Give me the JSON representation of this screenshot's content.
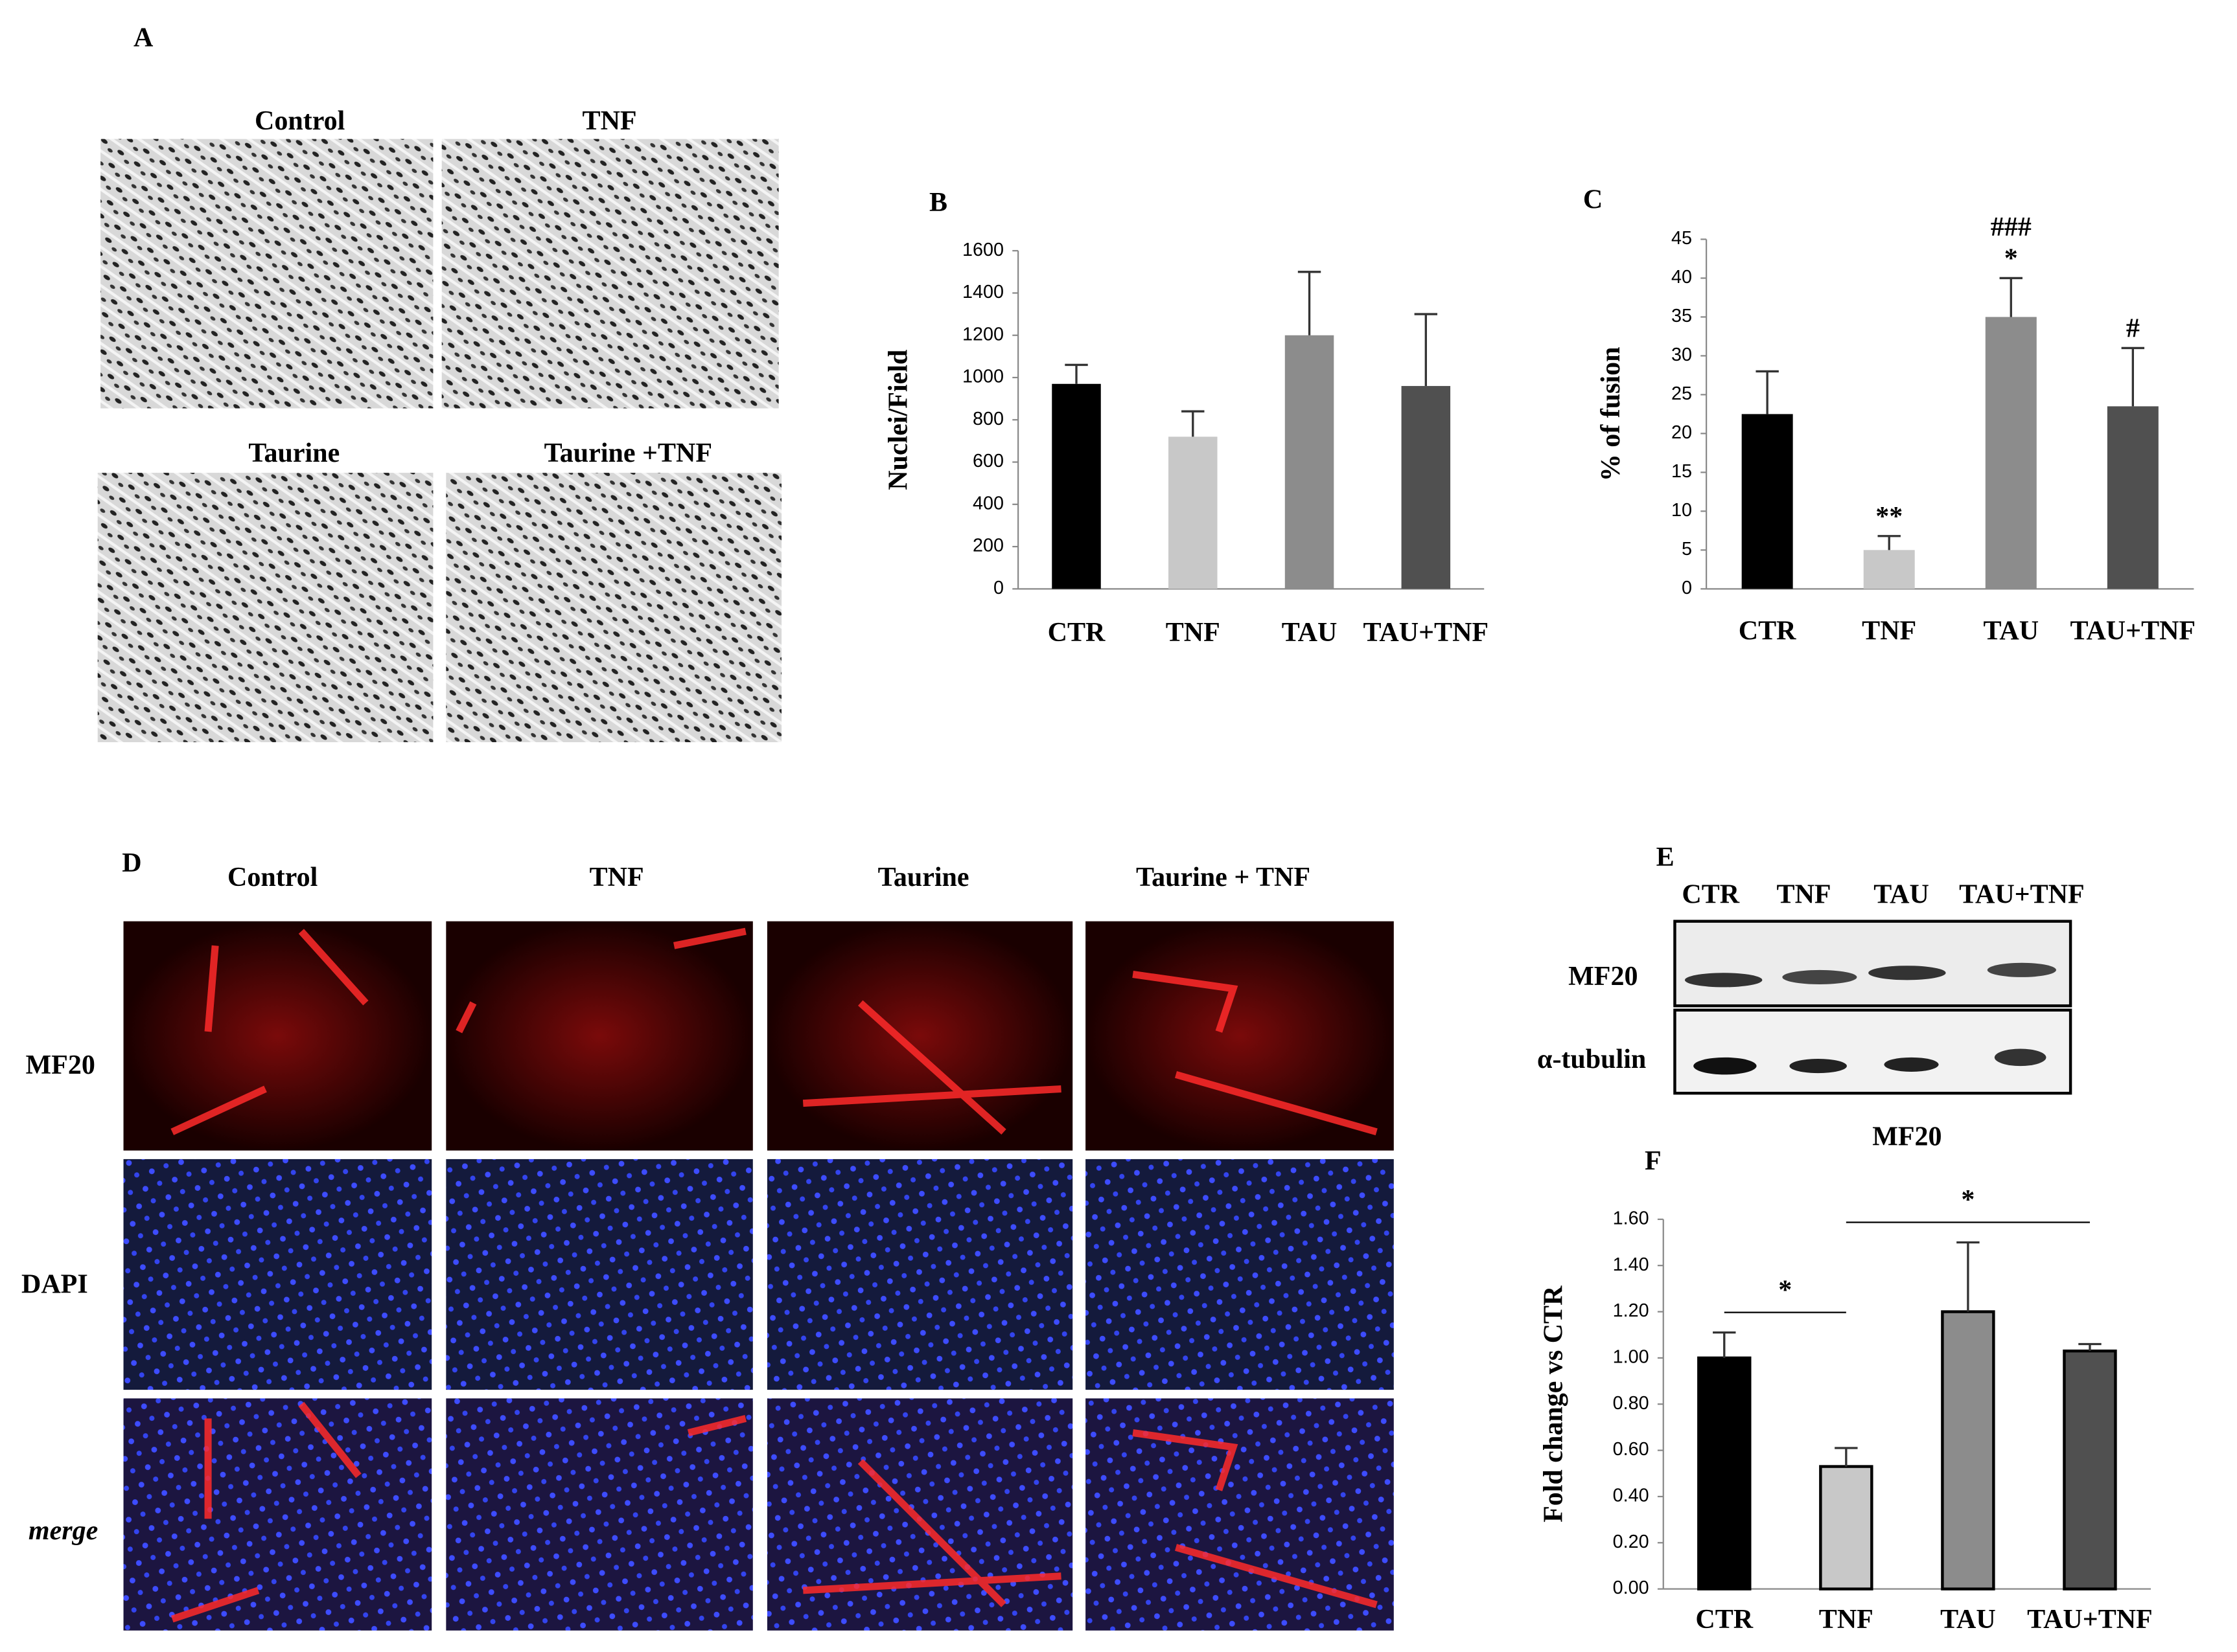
{
  "panel_a": {
    "label": "A",
    "images": [
      "Control",
      "TNF",
      "Taurine",
      "Taurine +TNF"
    ]
  },
  "panel_d": {
    "label": "D",
    "columns": [
      "Control",
      "TNF",
      "Taurine",
      "Taurine + TNF"
    ],
    "rows": [
      "MF20",
      "DAPI",
      "merge"
    ]
  },
  "panel_e": {
    "label": "E",
    "lanes": [
      "CTR",
      "TNF",
      "TAU",
      "TAU+TNF"
    ],
    "rows": [
      "MF20",
      "α-tubulin"
    ]
  },
  "chart_data": [
    {
      "type": "bar",
      "panel_label": "B",
      "y_label": "Nuclei/Field",
      "categories": [
        "CTR",
        "TNF",
        "TAU",
        "TAU+TNF"
      ],
      "values": [
        970,
        720,
        1200,
        960
      ],
      "errors": [
        90,
        120,
        300,
        340
      ],
      "colors": [
        "#000000",
        "#c8c8c8",
        "#8c8c8c",
        "#505050"
      ],
      "ylim": [
        0,
        1600
      ],
      "yticks": [
        0,
        200,
        400,
        600,
        800,
        1000,
        1200,
        1400,
        1600
      ]
    },
    {
      "type": "bar",
      "panel_label": "C",
      "y_label": "% of fusion",
      "categories": [
        "CTR",
        "TNF",
        "TAU",
        "TAU+TNF"
      ],
      "values": [
        22.5,
        5,
        35,
        23.5
      ],
      "errors": [
        5.5,
        1.8,
        5,
        7.5
      ],
      "colors": [
        "#000000",
        "#c8c8c8",
        "#8c8c8c",
        "#505050"
      ],
      "ylim": [
        0,
        45
      ],
      "yticks": [
        0,
        5,
        10,
        15,
        20,
        25,
        30,
        35,
        40,
        45
      ],
      "annotations": [
        {
          "text": "**",
          "category": "TNF"
        },
        {
          "text": "*",
          "category": "TAU"
        },
        {
          "text": "###",
          "category": "TAU"
        },
        {
          "text": "#",
          "category": "TAU+TNF"
        }
      ]
    },
    {
      "type": "bar",
      "panel_label": "F",
      "title": "MF20",
      "y_label": "Fold change vs CTR",
      "categories": [
        "CTR",
        "TNF",
        "TAU",
        "TAU+TNF"
      ],
      "values": [
        1.0,
        0.53,
        1.2,
        1.03
      ],
      "errors": [
        0.11,
        0.08,
        0.3,
        0.03
      ],
      "colors": [
        "#000000",
        "#c8c8c8",
        "#8c8c8c",
        "#505050"
      ],
      "ylim": [
        0,
        1.6
      ],
      "yticks": [
        {
          "value": 0,
          "label": "0.00"
        },
        {
          "value": 0.2,
          "label": "0.20"
        },
        {
          "value": 0.4,
          "label": "0.40"
        },
        {
          "value": 0.6,
          "label": "0.60"
        },
        {
          "value": 0.8,
          "label": "0.80"
        },
        {
          "value": 1.0,
          "label": "1.00"
        },
        {
          "value": 1.2,
          "label": "1.20"
        },
        {
          "value": 1.4,
          "label": "1.40"
        },
        {
          "value": 1.6,
          "label": "1.60"
        }
      ],
      "outline": true,
      "brackets": [
        {
          "text": "*",
          "from": "CTR",
          "to": "TNF"
        },
        {
          "text": "*",
          "from": "TNF",
          "to": "TAU+TNF"
        }
      ]
    }
  ]
}
